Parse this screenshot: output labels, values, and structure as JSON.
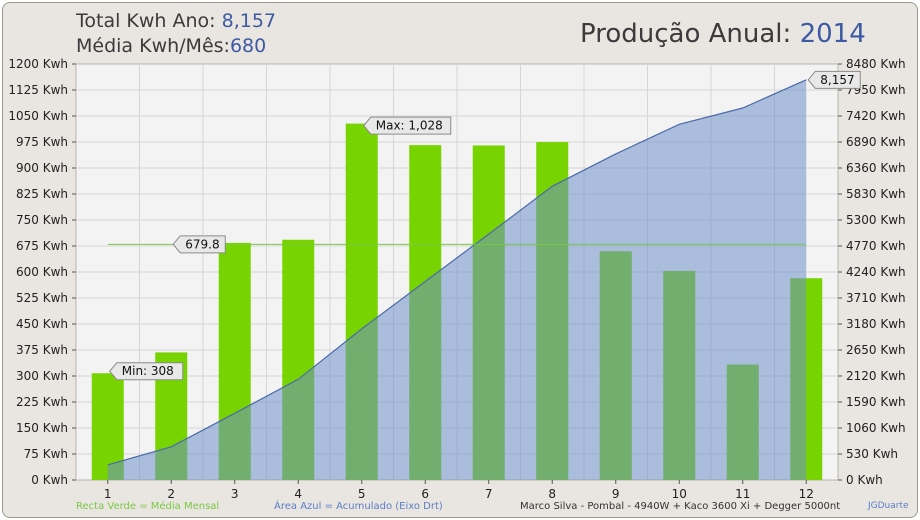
{
  "header": {
    "total_label": "Total Kwh Ano:",
    "total_value": "8,157",
    "avg_label": "Média Kwh/Mês:",
    "avg_value": "680",
    "title_label": "Produção Anual:",
    "title_year": "2014"
  },
  "chart_data": {
    "type": "bar",
    "categories": [
      "1",
      "2",
      "3",
      "4",
      "5",
      "6",
      "7",
      "8",
      "9",
      "10",
      "11",
      "12"
    ],
    "series": [
      {
        "values": [
          308,
          368,
          684,
          693,
          1028,
          966,
          965,
          975,
          660,
          603,
          333,
          582
        ]
      },
      {
        "type": "area",
        "axis": "right",
        "values": [
          308,
          676,
          1360,
          2053,
          3081,
          4047,
          5012,
          5987,
          6647,
          7250,
          7583,
          8157
        ]
      },
      {
        "type": "line",
        "values": [
          679.8,
          679.8,
          679.8,
          679.8,
          679.8,
          679.8,
          679.8,
          679.8,
          679.8,
          679.8,
          679.8,
          679.8
        ]
      }
    ],
    "y_left": {
      "min": 0,
      "max": 1200,
      "step": 75,
      "unit": "Kwh",
      "ticks": [
        "0 Kwh",
        "75 Kwh",
        "150 Kwh",
        "225 Kwh",
        "300 Kwh",
        "375 Kwh",
        "450 Kwh",
        "525 Kwh",
        "600 Kwh",
        "675 Kwh",
        "750 Kwh",
        "825 Kwh",
        "900 Kwh",
        "975 Kwh",
        "1050 Kwh",
        "1125 Kwh",
        "1200 Kwh"
      ]
    },
    "y_right": {
      "min": 0,
      "max": 8480,
      "step": 530,
      "unit": "Kwh",
      "ticks": [
        "0 Kwh",
        "530 Kwh",
        "1060 Kwh",
        "1590 Kwh",
        "2120 Kwh",
        "2650 Kwh",
        "3180 Kwh",
        "3710 Kwh",
        "4240 Kwh",
        "4770 Kwh",
        "5300 Kwh",
        "5830 Kwh",
        "6360 Kwh",
        "6890 Kwh",
        "7420 Kwh",
        "7950 Kwh",
        "8480 Kwh"
      ]
    },
    "annotations": {
      "min_label": "Min: 308",
      "max_label": "Max: 1,028",
      "avg_label": "679.8",
      "total_label": "8,157"
    },
    "colors": {
      "bar": "#77d400",
      "area_fill": "#6f8fc8",
      "area_line": "#4a6aa8",
      "avg_line": "#7ac943",
      "plot_bg": "#f3f3f3",
      "grid": "#d6d6d6"
    },
    "grid": true
  },
  "footer": {
    "green_note": "Recta Verde = Média Mensal",
    "blue_note": "Área Azul = Acumulado (Eixo Drt)",
    "credit": "Marco Silva - Pombal - 4940W + Kaco 3600 Xi + Degger 5000nt",
    "author": "JGDuarte"
  }
}
